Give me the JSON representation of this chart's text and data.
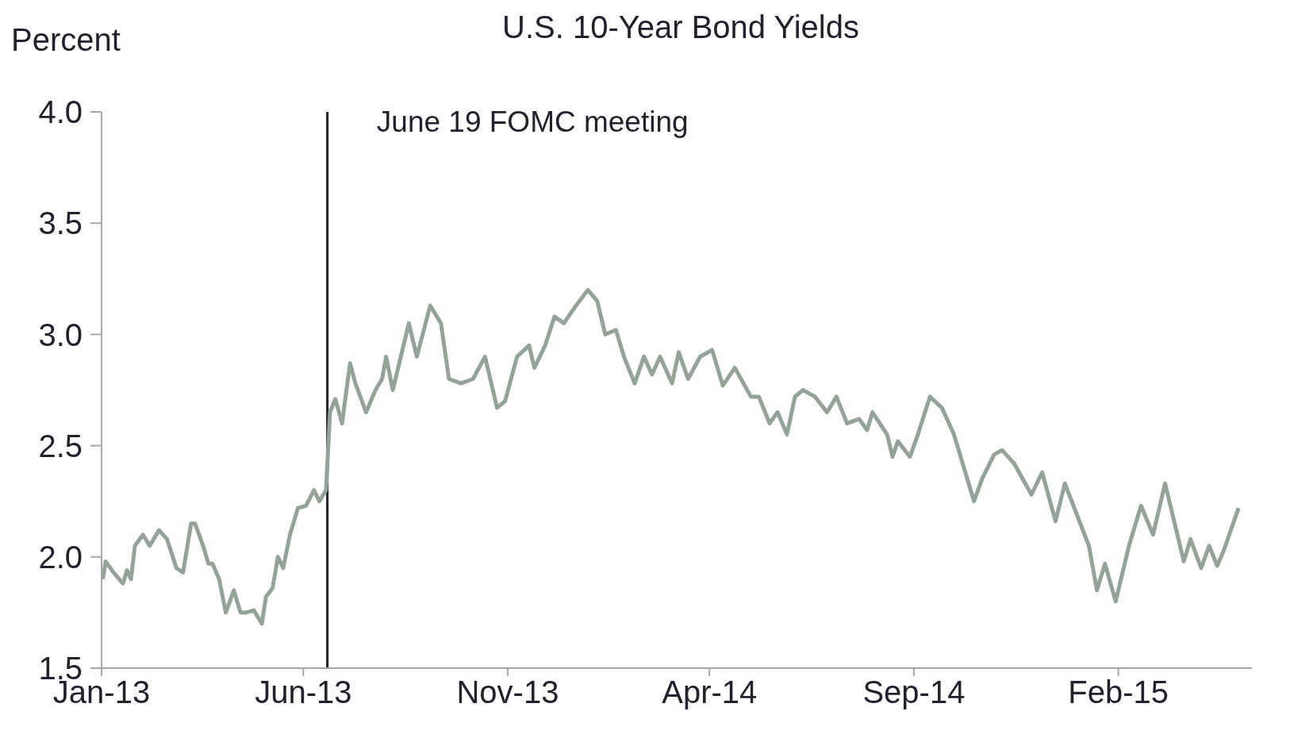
{
  "chart_data": {
    "type": "line",
    "title": "U.S. 10-Year Bond Yields",
    "ylabel": "Percent",
    "x": [
      "2013-01-02",
      "2013-01-04",
      "2013-01-10",
      "2013-01-17",
      "2013-01-20",
      "2013-01-23",
      "2013-01-26",
      "2013-02-01",
      "2013-02-06",
      "2013-02-13",
      "2013-02-19",
      "2013-02-26",
      "2013-03-03",
      "2013-03-09",
      "2013-03-12",
      "2013-03-18",
      "2013-03-22",
      "2013-03-25",
      "2013-03-30",
      "2013-04-04",
      "2013-04-10",
      "2013-04-15",
      "2013-04-19",
      "2013-04-25",
      "2013-05-01",
      "2013-05-04",
      "2013-05-09",
      "2013-05-13",
      "2013-05-17",
      "2013-05-22",
      "2013-05-28",
      "2013-06-03",
      "2013-06-09",
      "2013-06-13",
      "2013-06-18",
      "2013-06-21",
      "2013-06-25",
      "2013-06-30",
      "2013-07-06",
      "2013-07-10",
      "2013-07-18",
      "2013-07-25",
      "2013-07-30",
      "2013-08-02",
      "2013-08-07",
      "2013-08-13",
      "2013-08-19",
      "2013-08-25",
      "2013-09-04",
      "2013-09-12",
      "2013-09-18",
      "2013-09-27",
      "2013-10-06",
      "2013-10-15",
      "2013-10-24",
      "2013-10-30",
      "2013-11-08",
      "2013-11-17",
      "2013-11-21",
      "2013-11-29",
      "2013-12-06",
      "2013-12-13",
      "2013-12-21",
      "2013-12-31",
      "2014-01-07",
      "2014-01-13",
      "2014-01-21",
      "2014-01-27",
      "2014-02-04",
      "2014-02-11",
      "2014-02-17",
      "2014-02-23",
      "2014-03-04",
      "2014-03-09",
      "2014-03-16",
      "2014-03-25",
      "2014-04-03",
      "2014-04-11",
      "2014-04-20",
      "2014-05-02",
      "2014-05-08",
      "2014-05-16",
      "2014-05-22",
      "2014-05-29",
      "2014-06-04",
      "2014-06-10",
      "2014-06-19",
      "2014-06-28",
      "2014-07-05",
      "2014-07-13",
      "2014-07-22",
      "2014-07-28",
      "2014-08-01",
      "2014-08-12",
      "2014-08-16",
      "2014-08-20",
      "2014-08-29",
      "2014-09-04",
      "2014-09-13",
      "2014-09-22",
      "2014-10-01",
      "2014-10-16",
      "2014-10-22",
      "2014-10-31",
      "2014-11-06",
      "2014-11-15",
      "2014-11-28",
      "2014-12-06",
      "2014-12-16",
      "2014-12-23",
      "2015-01-10",
      "2015-01-16",
      "2015-01-22",
      "2015-01-30",
      "2015-02-09",
      "2015-02-18",
      "2015-02-27",
      "2015-03-08",
      "2015-03-14",
      "2015-03-22",
      "2015-03-27",
      "2015-04-04",
      "2015-04-10",
      "2015-04-16",
      "2015-04-21",
      "2015-05-02"
    ],
    "series": [
      {
        "color": "#94a398",
        "values": [
          1.9,
          1.98,
          1.93,
          1.88,
          1.94,
          1.9,
          2.05,
          2.1,
          2.05,
          2.12,
          2.08,
          1.95,
          1.93,
          2.15,
          2.15,
          2.05,
          1.97,
          1.97,
          1.9,
          1.75,
          1.85,
          1.75,
          1.75,
          1.76,
          1.7,
          1.82,
          1.86,
          2.0,
          1.95,
          2.1,
          2.22,
          2.23,
          2.3,
          2.25,
          2.3,
          2.65,
          2.71,
          2.6,
          2.87,
          2.78,
          2.65,
          2.75,
          2.8,
          2.9,
          2.75,
          2.9,
          3.05,
          2.9,
          3.13,
          3.05,
          2.8,
          2.78,
          2.8,
          2.9,
          2.67,
          2.7,
          2.9,
          2.95,
          2.85,
          2.95,
          3.08,
          3.05,
          3.12,
          3.2,
          3.15,
          3.0,
          3.02,
          2.9,
          2.78,
          2.9,
          2.82,
          2.9,
          2.78,
          2.92,
          2.8,
          2.9,
          2.93,
          2.77,
          2.85,
          2.72,
          2.72,
          2.6,
          2.65,
          2.55,
          2.72,
          2.75,
          2.72,
          2.65,
          2.72,
          2.6,
          2.62,
          2.57,
          2.65,
          2.55,
          2.45,
          2.52,
          2.45,
          2.55,
          2.72,
          2.67,
          2.55,
          2.25,
          2.35,
          2.46,
          2.48,
          2.42,
          2.28,
          2.38,
          2.16,
          2.33,
          2.05,
          1.85,
          1.97,
          1.8,
          2.05,
          2.23,
          2.1,
          2.33,
          2.18,
          1.98,
          2.08,
          1.95,
          2.05,
          1.96,
          2.03,
          2.22
        ]
      }
    ],
    "xlim": [
      "2013-01-01",
      "2015-05-12"
    ],
    "xticks": [
      {
        "value": "2013-01-01",
        "label": "Jan-13"
      },
      {
        "value": "2013-06-01",
        "label": "Jun-13"
      },
      {
        "value": "2013-11-01",
        "label": "Nov-13"
      },
      {
        "value": "2014-04-01",
        "label": "Apr-14"
      },
      {
        "value": "2014-09-01",
        "label": "Sep-14"
      },
      {
        "value": "2015-02-01",
        "label": "Feb-15"
      }
    ],
    "ylim": [
      1.5,
      4.0
    ],
    "yticks": [
      {
        "value": 1.5,
        "label": "1.5"
      },
      {
        "value": 2,
        "label": "2.0"
      },
      {
        "value": 2.5,
        "label": "2.5"
      },
      {
        "value": 3,
        "label": "3.0"
      },
      {
        "value": 3.5,
        "label": "3.5"
      },
      {
        "value": 4,
        "label": "4.0"
      }
    ],
    "ref_lines": [
      {
        "axis": "x",
        "value": "2013-06-19",
        "label": "June 19 FOMC meeting",
        "color": "#22222e"
      }
    ],
    "grid": false,
    "legend": false,
    "marker": "none",
    "line_style": "solid"
  }
}
